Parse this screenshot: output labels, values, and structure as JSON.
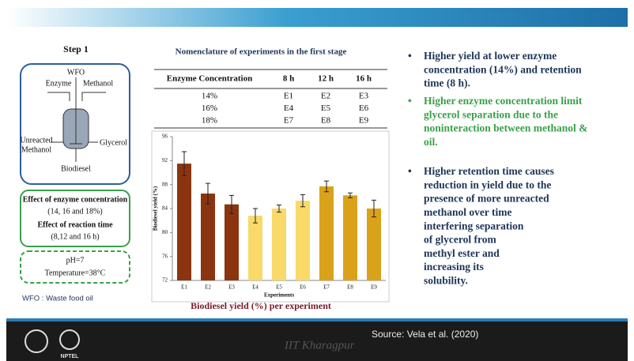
{
  "slide": {
    "step": "Step 1",
    "diagram": {
      "feed": "WFO",
      "enzyme": "Enzyme",
      "methanol": "Methanol",
      "unreacted": [
        "Unreacted",
        "Methanol"
      ],
      "glycerol": "Glycerol",
      "biodiesel": "Biodiesel"
    },
    "effects": [
      "Effect of enzyme concentration",
      "(14, 16 and 18%)",
      "Effect of reaction time",
      "(8,12 and 16 h)"
    ],
    "conditions": [
      "pH=7",
      "Temperature=38°C"
    ],
    "abbreviation": "WFO : Waste food oil",
    "table": {
      "title": "Nomenclature of experiments in the first stage",
      "header": [
        "Enzyme Concentration",
        "8 h",
        "12 h",
        "16 h"
      ],
      "rows": [
        [
          "14%",
          "E1",
          "E2",
          "E3"
        ],
        [
          "16%",
          "E4",
          "E5",
          "E6"
        ],
        [
          "18%",
          "E7",
          "E8",
          "E9"
        ]
      ]
    },
    "bullets": [
      {
        "lines": [
          "Higher yield at lower enzyme",
          "concentration (14%) and retention",
          "time (8 h)."
        ]
      },
      {
        "lines": [
          "Higher enzyme concentration limit",
          "glycerol separation due to the",
          "noninteraction between methanol &",
          "oil."
        ]
      },
      {
        "lines": [
          "Higher retention time causes",
          "reduction in yield due to the",
          "presence of more unreacted",
          "methanol over time",
          "interfering separation",
          "of glycerol from",
          "methyl ester and",
          "increasing its",
          "solubility."
        ]
      }
    ],
    "source": "Source: Vela et al. (2020)",
    "watermark": "IIT Kharagpur",
    "logo": "NPTEL"
  },
  "chart_data": {
    "type": "bar",
    "title": "Biodiesel yield (%) per experiment",
    "x_label": "Experiments",
    "y_label": "Biodiesel yield (%)",
    "categories": [
      "E1",
      "E2",
      "E3",
      "E4",
      "E5",
      "E6",
      "E7",
      "E8",
      "E9"
    ],
    "values": [
      91.5,
      86.5,
      84.7,
      82.8,
      84.0,
      85.3,
      87.7,
      86.2,
      84.0
    ],
    "errors": [
      2.0,
      1.7,
      1.5,
      1.2,
      0.6,
      1.0,
      0.9,
      0.4,
      1.4
    ],
    "colors": [
      "#8b3510",
      "#8b3510",
      "#8b3510",
      "#f8d96a",
      "#f8d96a",
      "#f8d96a",
      "#d9a21a",
      "#d9a21a",
      "#d9a21a"
    ],
    "ylim": [
      72,
      96
    ],
    "yticks": [
      72,
      76,
      80,
      84,
      88,
      92,
      96
    ]
  }
}
